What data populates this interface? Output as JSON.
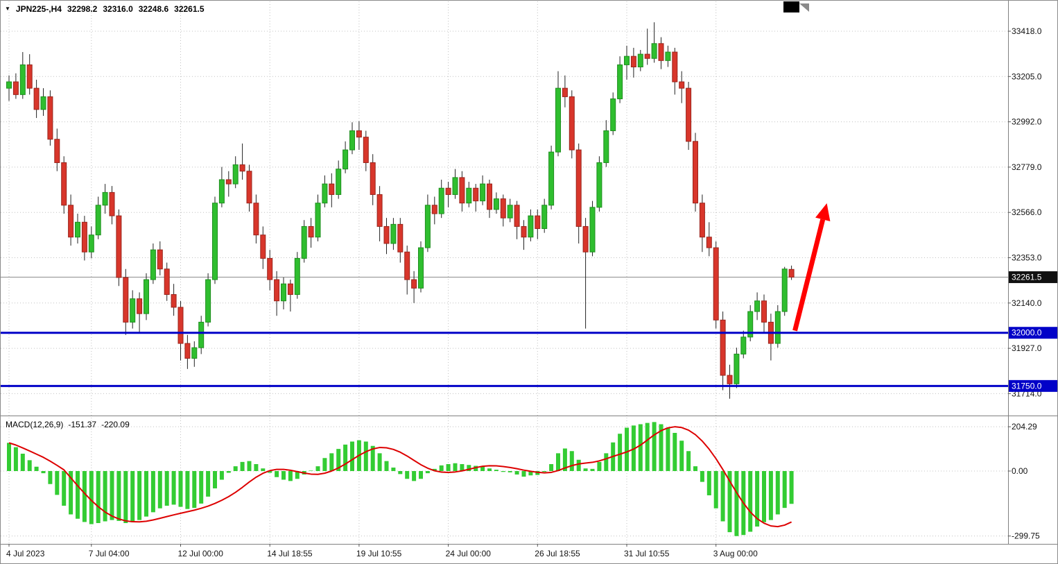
{
  "header": {
    "symbol_period": "JPN225-,H4",
    "open": "32298.2",
    "high": "32316.0",
    "low": "32248.6",
    "close": "32261.5"
  },
  "indicator": {
    "name": "MACD(12,26,9)",
    "main_value": "-151.37",
    "signal_value": "-220.09"
  },
  "chart_data": {
    "type": "candlestick",
    "symbol": "JPN225-",
    "timeframe": "H4",
    "price_axis": {
      "tick_labels": [
        "33418.0",
        "33205.0",
        "32992.0",
        "32779.0",
        "32566.0",
        "32353.0",
        "32140.0",
        "31927.0",
        "31714.0"
      ],
      "tick_values": [
        33418,
        33205,
        32992,
        32779,
        32566,
        32353,
        32140,
        31927,
        31714
      ]
    },
    "time_axis": [
      {
        "label": "4 Jul 2023",
        "bar_index": 0
      },
      {
        "label": "7 Jul 04:00",
        "bar_index": 12
      },
      {
        "label": "12 Jul 00:00",
        "bar_index": 25
      },
      {
        "label": "14 Jul 18:55",
        "bar_index": 38
      },
      {
        "label": "19 Jul 10:55",
        "bar_index": 51
      },
      {
        "label": "24 Jul 00:00",
        "bar_index": 64
      },
      {
        "label": "26 Jul 18:55",
        "bar_index": 77
      },
      {
        "label": "31 Jul 10:55",
        "bar_index": 90
      },
      {
        "label": "3 Aug 00:00",
        "bar_index": 103
      }
    ],
    "ohlc": [
      [
        33150,
        33210,
        33090,
        33180
      ],
      [
        33180,
        33220,
        33100,
        33120
      ],
      [
        33120,
        33320,
        33100,
        33260
      ],
      [
        33260,
        33310,
        33120,
        33150
      ],
      [
        33150,
        33190,
        33010,
        33050
      ],
      [
        33050,
        33150,
        33020,
        33110
      ],
      [
        33110,
        33140,
        32880,
        32910
      ],
      [
        32910,
        32960,
        32760,
        32800
      ],
      [
        32800,
        32830,
        32560,
        32600
      ],
      [
        32600,
        32650,
        32410,
        32450
      ],
      [
        32450,
        32560,
        32420,
        32520
      ],
      [
        32520,
        32550,
        32340,
        32380
      ],
      [
        32380,
        32500,
        32350,
        32460
      ],
      [
        32460,
        32640,
        32440,
        32600
      ],
      [
        32600,
        32700,
        32560,
        32660
      ],
      [
        32660,
        32690,
        32510,
        32550
      ],
      [
        32550,
        32580,
        32220,
        32260
      ],
      [
        32260,
        32300,
        31990,
        32050
      ],
      [
        32050,
        32200,
        32020,
        32160
      ],
      [
        32160,
        32190,
        32000,
        32090
      ],
      [
        32090,
        32280,
        32060,
        32250
      ],
      [
        32250,
        32420,
        32230,
        32390
      ],
      [
        32390,
        32430,
        32270,
        32300
      ],
      [
        32300,
        32330,
        32150,
        32180
      ],
      [
        32180,
        32230,
        32080,
        32120
      ],
      [
        32120,
        32150,
        31870,
        31950
      ],
      [
        31950,
        31990,
        31830,
        31880
      ],
      [
        31880,
        31960,
        31840,
        31930
      ],
      [
        31930,
        32080,
        31900,
        32050
      ],
      [
        32050,
        32280,
        32030,
        32250
      ],
      [
        32250,
        32640,
        32230,
        32610
      ],
      [
        32610,
        32780,
        32590,
        32720
      ],
      [
        32720,
        32760,
        32640,
        32700
      ],
      [
        32700,
        32830,
        32680,
        32790
      ],
      [
        32790,
        32890,
        32720,
        32760
      ],
      [
        32760,
        32790,
        32570,
        32610
      ],
      [
        32610,
        32650,
        32420,
        32460
      ],
      [
        32460,
        32500,
        32300,
        32350
      ],
      [
        32350,
        32390,
        32200,
        32250
      ],
      [
        32250,
        32290,
        32080,
        32150
      ],
      [
        32150,
        32260,
        32110,
        32230
      ],
      [
        32230,
        32250,
        32100,
        32180
      ],
      [
        32180,
        32380,
        32160,
        32350
      ],
      [
        32350,
        32530,
        32330,
        32500
      ],
      [
        32500,
        32540,
        32400,
        32450
      ],
      [
        32450,
        32650,
        32430,
        32610
      ],
      [
        32610,
        32740,
        32590,
        32700
      ],
      [
        32700,
        32750,
        32590,
        32650
      ],
      [
        32650,
        32810,
        32630,
        32770
      ],
      [
        32770,
        32900,
        32750,
        32860
      ],
      [
        32860,
        32990,
        32840,
        32950
      ],
      [
        32950,
        32995,
        32860,
        32920
      ],
      [
        32920,
        32950,
        32760,
        32800
      ],
      [
        32800,
        32840,
        32600,
        32650
      ],
      [
        32650,
        32690,
        32430,
        32500
      ],
      [
        32500,
        32540,
        32370,
        32420
      ],
      [
        32420,
        32540,
        32390,
        32510
      ],
      [
        32510,
        32540,
        32330,
        32380
      ],
      [
        32380,
        32410,
        32180,
        32250
      ],
      [
        32250,
        32290,
        32140,
        32210
      ],
      [
        32210,
        32430,
        32190,
        32400
      ],
      [
        32400,
        32650,
        32380,
        32600
      ],
      [
        32600,
        32640,
        32510,
        32560
      ],
      [
        32560,
        32720,
        32540,
        32680
      ],
      [
        32680,
        32710,
        32590,
        32650
      ],
      [
        32650,
        32770,
        32630,
        32730
      ],
      [
        32730,
        32760,
        32570,
        32610
      ],
      [
        32610,
        32710,
        32590,
        32680
      ],
      [
        32680,
        32700,
        32570,
        32620
      ],
      [
        32620,
        32740,
        32600,
        32700
      ],
      [
        32700,
        32720,
        32540,
        32580
      ],
      [
        32580,
        32660,
        32560,
        32630
      ],
      [
        32630,
        32650,
        32500,
        32540
      ],
      [
        32540,
        32630,
        32520,
        32600
      ],
      [
        32600,
        32620,
        32440,
        32500
      ],
      [
        32500,
        32530,
        32390,
        32450
      ],
      [
        32450,
        32580,
        32430,
        32550
      ],
      [
        32550,
        32580,
        32440,
        32490
      ],
      [
        32490,
        32630,
        32470,
        32600
      ],
      [
        32600,
        32880,
        32580,
        32850
      ],
      [
        32850,
        33230,
        32830,
        33150
      ],
      [
        33150,
        33210,
        33060,
        33110
      ],
      [
        33110,
        33140,
        32820,
        32860
      ],
      [
        32860,
        32890,
        32420,
        32500
      ],
      [
        32500,
        32540,
        32020,
        32380
      ],
      [
        32380,
        32620,
        32360,
        32590
      ],
      [
        32590,
        32830,
        32570,
        32800
      ],
      [
        32800,
        33000,
        32780,
        32950
      ],
      [
        32950,
        33130,
        32930,
        33100
      ],
      [
        33100,
        33300,
        33080,
        33260
      ],
      [
        33260,
        33350,
        33190,
        33300
      ],
      [
        33300,
        33340,
        33200,
        33250
      ],
      [
        33250,
        33330,
        33230,
        33310
      ],
      [
        33310,
        33430,
        33260,
        33290
      ],
      [
        33290,
        33460,
        33270,
        33360
      ],
      [
        33360,
        33390,
        33240,
        33280
      ],
      [
        33280,
        33350,
        33250,
        33320
      ],
      [
        33320,
        33340,
        33120,
        33180
      ],
      [
        33180,
        33230,
        33080,
        33150
      ],
      [
        33150,
        33180,
        32860,
        32900
      ],
      [
        32900,
        32940,
        32570,
        32610
      ],
      [
        32610,
        32650,
        32380,
        32450
      ],
      [
        32450,
        32520,
        32360,
        32400
      ],
      [
        32400,
        32430,
        32020,
        32060
      ],
      [
        32060,
        32100,
        31730,
        31800
      ],
      [
        31800,
        31850,
        31690,
        31760
      ],
      [
        31760,
        31930,
        31740,
        31900
      ],
      [
        31900,
        32010,
        31880,
        31980
      ],
      [
        31980,
        32130,
        31960,
        32100
      ],
      [
        32100,
        32190,
        32060,
        32150
      ],
      [
        32150,
        32180,
        32000,
        32050
      ],
      [
        32050,
        32090,
        31870,
        31950
      ],
      [
        31950,
        32130,
        31930,
        32100
      ],
      [
        32100,
        32310,
        32080,
        32300
      ],
      [
        32298.2,
        32316.0,
        32248.6,
        32261.5
      ]
    ],
    "support_resistance_lines": [
      {
        "price": 32000.0,
        "label": "32000.0",
        "color": "#0202C8"
      },
      {
        "price": 31750.0,
        "label": "31750.0",
        "color": "#0202C8"
      }
    ],
    "last_price": {
      "value": 32261.5,
      "label": "32261.5"
    },
    "annotation_arrow": {
      "from_bar": 114.5,
      "from_price": 32010,
      "to_bar": 119,
      "to_price": 32590,
      "color": "#FF0000"
    },
    "macd": {
      "params": "12,26,9",
      "histogram": [
        130,
        110,
        80,
        50,
        20,
        -10,
        -60,
        -110,
        -160,
        -200,
        -220,
        -235,
        -245,
        -240,
        -232,
        -226,
        -230,
        -240,
        -236,
        -226,
        -210,
        -190,
        -172,
        -160,
        -155,
        -165,
        -175,
        -170,
        -150,
        -118,
        -80,
        -40,
        -8,
        22,
        42,
        46,
        32,
        12,
        -8,
        -28,
        -40,
        -46,
        -36,
        -16,
        2,
        22,
        60,
        82,
        102,
        122,
        136,
        142,
        136,
        116,
        82,
        46,
        16,
        -14,
        -36,
        -46,
        -36,
        -10,
        10,
        26,
        32,
        36,
        32,
        28,
        24,
        20,
        12,
        6,
        -4,
        -6,
        -16,
        -26,
        -20,
        -18,
        -4,
        32,
        82,
        104,
        92,
        52,
        12,
        10,
        42,
        82,
        132,
        172,
        200,
        210,
        216,
        222,
        226,
        216,
        200,
        176,
        140,
        92,
        22,
        -50,
        -112,
        -172,
        -232,
        -282,
        -300,
        -295,
        -280,
        -256,
        -236,
        -226,
        -200,
        -170,
        -151.37
      ],
      "axis_labels": [
        {
          "label": "204.29",
          "value": 204.29
        },
        {
          "label": "0.00",
          "value": 0
        },
        {
          "label": "-299.75",
          "value": -299.75
        }
      ]
    },
    "colors": {
      "bull": "#2FBE2F",
      "bull_border": "#1E8E1E",
      "bear": "#D8362B",
      "bear_border": "#9A241C",
      "wick": "#222222",
      "grid": "#C0C0C0",
      "macd_bar": "#33CC33",
      "macd_signal": "#DD0000",
      "last_price_line": "#8C8C8C",
      "badge_last": "#111111"
    }
  }
}
